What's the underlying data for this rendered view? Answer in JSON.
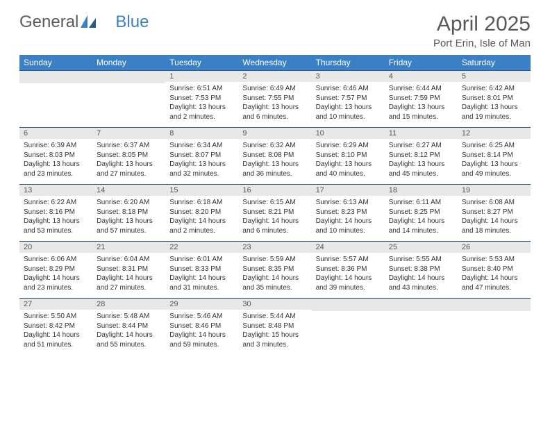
{
  "brand": {
    "part1": "General",
    "part2": "Blue"
  },
  "title": "April 2025",
  "location": "Port Erin, Isle of Man",
  "colors": {
    "header_bg": "#3b7fc4",
    "header_text": "#ffffff",
    "daynum_bg": "#e8e8e8",
    "rule": "#2b5a8a",
    "text": "#333333",
    "title_color": "#595959"
  },
  "weekdays": [
    "Sunday",
    "Monday",
    "Tuesday",
    "Wednesday",
    "Thursday",
    "Friday",
    "Saturday"
  ],
  "weeks": [
    [
      null,
      null,
      {
        "n": "1",
        "sr": "6:51 AM",
        "ss": "7:53 PM",
        "dl": "13 hours and 2 minutes."
      },
      {
        "n": "2",
        "sr": "6:49 AM",
        "ss": "7:55 PM",
        "dl": "13 hours and 6 minutes."
      },
      {
        "n": "3",
        "sr": "6:46 AM",
        "ss": "7:57 PM",
        "dl": "13 hours and 10 minutes."
      },
      {
        "n": "4",
        "sr": "6:44 AM",
        "ss": "7:59 PM",
        "dl": "13 hours and 15 minutes."
      },
      {
        "n": "5",
        "sr": "6:42 AM",
        "ss": "8:01 PM",
        "dl": "13 hours and 19 minutes."
      }
    ],
    [
      {
        "n": "6",
        "sr": "6:39 AM",
        "ss": "8:03 PM",
        "dl": "13 hours and 23 minutes."
      },
      {
        "n": "7",
        "sr": "6:37 AM",
        "ss": "8:05 PM",
        "dl": "13 hours and 27 minutes."
      },
      {
        "n": "8",
        "sr": "6:34 AM",
        "ss": "8:07 PM",
        "dl": "13 hours and 32 minutes."
      },
      {
        "n": "9",
        "sr": "6:32 AM",
        "ss": "8:08 PM",
        "dl": "13 hours and 36 minutes."
      },
      {
        "n": "10",
        "sr": "6:29 AM",
        "ss": "8:10 PM",
        "dl": "13 hours and 40 minutes."
      },
      {
        "n": "11",
        "sr": "6:27 AM",
        "ss": "8:12 PM",
        "dl": "13 hours and 45 minutes."
      },
      {
        "n": "12",
        "sr": "6:25 AM",
        "ss": "8:14 PM",
        "dl": "13 hours and 49 minutes."
      }
    ],
    [
      {
        "n": "13",
        "sr": "6:22 AM",
        "ss": "8:16 PM",
        "dl": "13 hours and 53 minutes."
      },
      {
        "n": "14",
        "sr": "6:20 AM",
        "ss": "8:18 PM",
        "dl": "13 hours and 57 minutes."
      },
      {
        "n": "15",
        "sr": "6:18 AM",
        "ss": "8:20 PM",
        "dl": "14 hours and 2 minutes."
      },
      {
        "n": "16",
        "sr": "6:15 AM",
        "ss": "8:21 PM",
        "dl": "14 hours and 6 minutes."
      },
      {
        "n": "17",
        "sr": "6:13 AM",
        "ss": "8:23 PM",
        "dl": "14 hours and 10 minutes."
      },
      {
        "n": "18",
        "sr": "6:11 AM",
        "ss": "8:25 PM",
        "dl": "14 hours and 14 minutes."
      },
      {
        "n": "19",
        "sr": "6:08 AM",
        "ss": "8:27 PM",
        "dl": "14 hours and 18 minutes."
      }
    ],
    [
      {
        "n": "20",
        "sr": "6:06 AM",
        "ss": "8:29 PM",
        "dl": "14 hours and 23 minutes."
      },
      {
        "n": "21",
        "sr": "6:04 AM",
        "ss": "8:31 PM",
        "dl": "14 hours and 27 minutes."
      },
      {
        "n": "22",
        "sr": "6:01 AM",
        "ss": "8:33 PM",
        "dl": "14 hours and 31 minutes."
      },
      {
        "n": "23",
        "sr": "5:59 AM",
        "ss": "8:35 PM",
        "dl": "14 hours and 35 minutes."
      },
      {
        "n": "24",
        "sr": "5:57 AM",
        "ss": "8:36 PM",
        "dl": "14 hours and 39 minutes."
      },
      {
        "n": "25",
        "sr": "5:55 AM",
        "ss": "8:38 PM",
        "dl": "14 hours and 43 minutes."
      },
      {
        "n": "26",
        "sr": "5:53 AM",
        "ss": "8:40 PM",
        "dl": "14 hours and 47 minutes."
      }
    ],
    [
      {
        "n": "27",
        "sr": "5:50 AM",
        "ss": "8:42 PM",
        "dl": "14 hours and 51 minutes."
      },
      {
        "n": "28",
        "sr": "5:48 AM",
        "ss": "8:44 PM",
        "dl": "14 hours and 55 minutes."
      },
      {
        "n": "29",
        "sr": "5:46 AM",
        "ss": "8:46 PM",
        "dl": "14 hours and 59 minutes."
      },
      {
        "n": "30",
        "sr": "5:44 AM",
        "ss": "8:48 PM",
        "dl": "15 hours and 3 minutes."
      },
      null,
      null,
      null
    ]
  ],
  "labels": {
    "sunrise": "Sunrise:",
    "sunset": "Sunset:",
    "daylight": "Daylight:"
  }
}
